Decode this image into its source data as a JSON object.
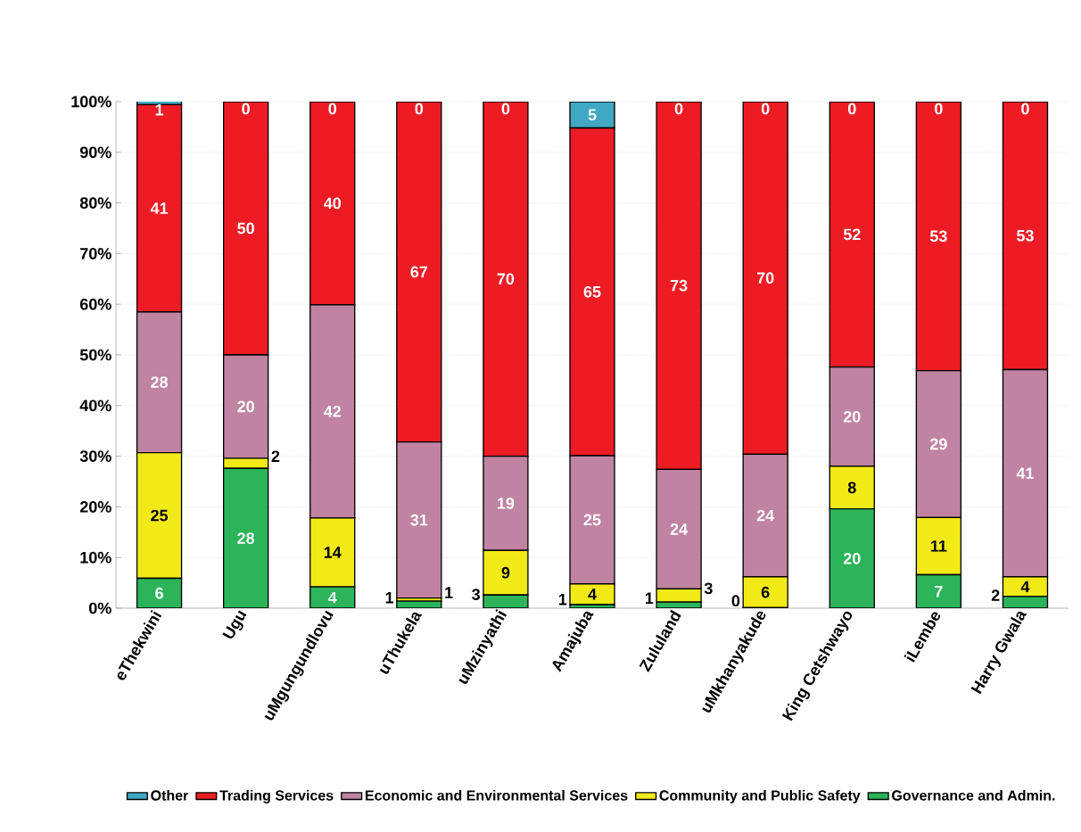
{
  "chart_data": {
    "type": "bar",
    "stacked": true,
    "categories": [
      "eThekwini",
      "Ugu",
      "uMgungundlovu",
      "uThukela",
      "uMzinyathi",
      "Amajuba",
      "Zululand",
      "uMkhanyakude",
      "King Cetshwayo",
      "iLembe",
      "Harry Gwala"
    ],
    "series": [
      {
        "name": "Governance and Admin.",
        "color": "#2bb45a",
        "values": [
          5.9,
          27.6,
          4.2,
          1.4,
          2.6,
          0.7,
          1.2,
          0.1,
          19.6,
          6.6,
          2.3
        ],
        "value_labels": [
          "6",
          "28",
          "4",
          "1",
          "3",
          "1",
          "1",
          "0",
          "20",
          "7",
          "2"
        ]
      },
      {
        "name": "Community and Public Safety",
        "color": "#f2ea17",
        "values": [
          24.8,
          2.0,
          13.6,
          0.6,
          8.8,
          4.1,
          2.6,
          6.1,
          8.4,
          11.3,
          3.9
        ],
        "value_labels": [
          "25",
          "2",
          "14",
          "1",
          "9",
          "4",
          "3",
          "6",
          "8",
          "11",
          "4"
        ]
      },
      {
        "name": "Economic and Environmental Services",
        "color": "#c083a2",
        "values": [
          27.8,
          20.4,
          42.1,
          30.8,
          18.6,
          25.3,
          23.6,
          24.2,
          19.6,
          29.0,
          40.9
        ],
        "value_labels": [
          "28",
          "20",
          "42",
          "31",
          "19",
          "25",
          "24",
          "24",
          "20",
          "29",
          "41"
        ]
      },
      {
        "name": "Trading Services",
        "color": "#ed1c24",
        "values": [
          40.9,
          50.0,
          40.1,
          67.2,
          70.0,
          64.7,
          72.6,
          69.6,
          52.4,
          53.1,
          52.9
        ],
        "value_labels": [
          "41",
          "50",
          "40",
          "67",
          "70",
          "65",
          "73",
          "70",
          "52",
          "53",
          "53"
        ]
      },
      {
        "name": "Other",
        "color": "#41a8c4",
        "values": [
          0.7,
          0,
          0,
          0,
          0,
          5.2,
          0,
          0,
          0,
          0,
          0
        ],
        "value_labels": [
          "1",
          "0",
          "0",
          "0",
          "0",
          "5",
          "0",
          "0",
          "0",
          "0",
          "0"
        ]
      }
    ],
    "ylim": [
      0,
      100
    ],
    "yticks": [
      {
        "value": 0,
        "label": "0%"
      },
      {
        "value": 10,
        "label": "10%"
      },
      {
        "value": 20,
        "label": "20%"
      },
      {
        "value": 30,
        "label": "30%"
      },
      {
        "value": 40,
        "label": "40%"
      },
      {
        "value": 50,
        "label": "50%"
      },
      {
        "value": 60,
        "label": "60%"
      },
      {
        "value": 70,
        "label": "70%"
      },
      {
        "value": 80,
        "label": "80%"
      },
      {
        "value": 90,
        "label": "90%"
      },
      {
        "value": 100,
        "label": "100%"
      }
    ],
    "grid": "y",
    "legend": "bottom"
  }
}
